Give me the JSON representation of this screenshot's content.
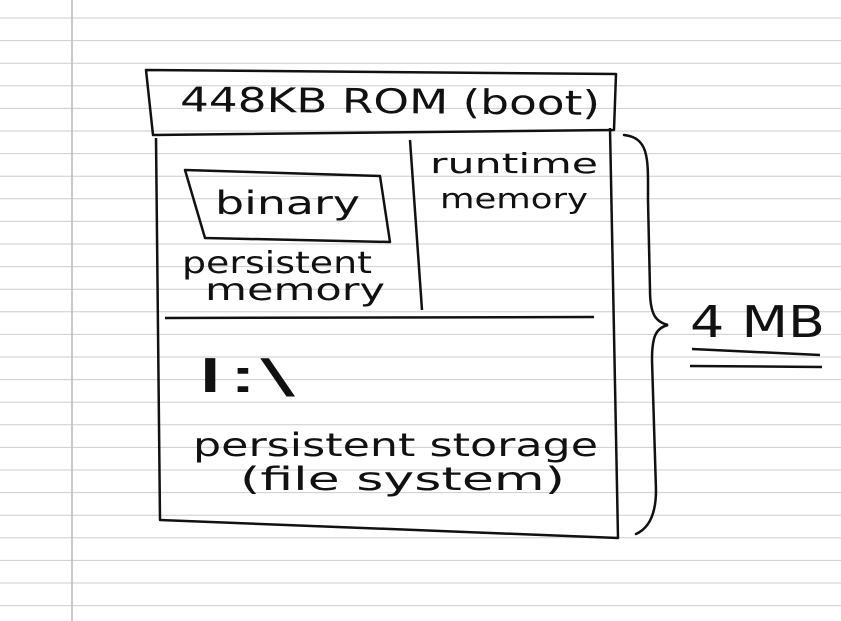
{
  "diagram": {
    "rom_label": "448KB ROM (boot)",
    "binary_label": "binary",
    "persistent_memory_line1": "persistent",
    "persistent_memory_line2": "memory",
    "runtime_memory_line1": "runtime",
    "runtime_memory_line2": "memory",
    "drive_label": "I:\\",
    "storage_line1": "persistent storage",
    "storage_line2": "(file system)",
    "total_size_label": "4 MB"
  },
  "colors": {
    "paper": "#ffffff",
    "rule_line": "#cdcdcd",
    "margin_line": "#b9b9b9",
    "ink": "#111111"
  }
}
